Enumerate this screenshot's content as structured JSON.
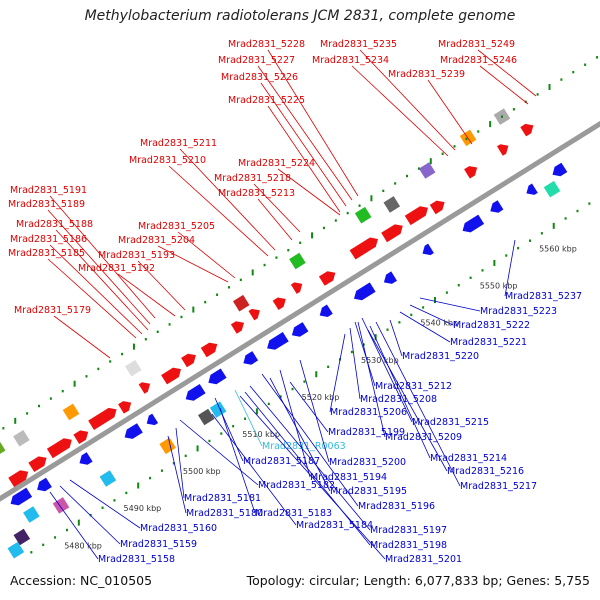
{
  "title": "Methylobacterium radiotolerans JCM 2831, complete genome",
  "accession": "Accession: NC_010505",
  "stats": "Topology: circular; Length: 6,077,833 bp; Genes: 5,755",
  "colors": {
    "forward": "#ee1111",
    "reverse": "#1111ee",
    "other": "#22bbee",
    "backbone": "#9a9a9a",
    "tick": "#118811",
    "label_forward": "#dd0000",
    "label_reverse": "#0000cc",
    "label_other": "#33bbdd"
  },
  "kbp_labels": [
    "5480 kbp",
    "5490 kbp",
    "5500 kbp",
    "5510 kbp",
    "5520 kbp",
    "5530 kbp",
    "5540 kbp",
    "5550 kbp",
    "5560 kbp"
  ],
  "top_labels": [
    "Mrad2831_5228",
    "Mrad2831_5227",
    "Mrad2831_5226",
    "Mrad2831_5225",
    "Mrad2831_5235",
    "Mrad2831_5234",
    "Mrad2831_5249",
    "Mrad2831_5246",
    "Mrad2831_5239",
    "Mrad2831_5211",
    "Mrad2831_5210",
    "Mrad2831_5224",
    "Mrad2831_5218",
    "Mrad2831_5213",
    "Mrad2831_5191",
    "Mrad2831_5189",
    "Mrad2831_5188",
    "Mrad2831_5186",
    "Mrad2831_5185",
    "Mrad2831_5205",
    "Mrad2831_5204",
    "Mrad2831_5193",
    "Mrad2831_5192",
    "Mrad2831_5179"
  ],
  "bottom_labels": [
    "Mrad2831_5237",
    "Mrad2831_5223",
    "Mrad2831_5222",
    "Mrad2831_5221",
    "Mrad2831_5220",
    "Mrad2831_5212",
    "Mrad2831_5208",
    "Mrad2831_5206",
    "Mrad2831_5215",
    "Mrad2831_5209",
    "Mrad2831_5199",
    "Mrad2831_R0063",
    "Mrad2831_5187",
    "Mrad2831_5200",
    "Mrad2831_5214",
    "Mrad2831_5216",
    "Mrad2831_5194",
    "Mrad2831_5217",
    "Mrad2831_5195",
    "Mrad2831_5182",
    "Mrad2831_5181",
    "Mrad2831_5196",
    "Mrad2831_5180",
    "Mrad2831_5183",
    "Mrad2831_5184",
    "Mrad2831_5197",
    "Mrad2831_5160",
    "Mrad2831_5198",
    "Mrad2831_5159",
    "Mrad2831_5201",
    "Mrad2831_5158"
  ]
}
